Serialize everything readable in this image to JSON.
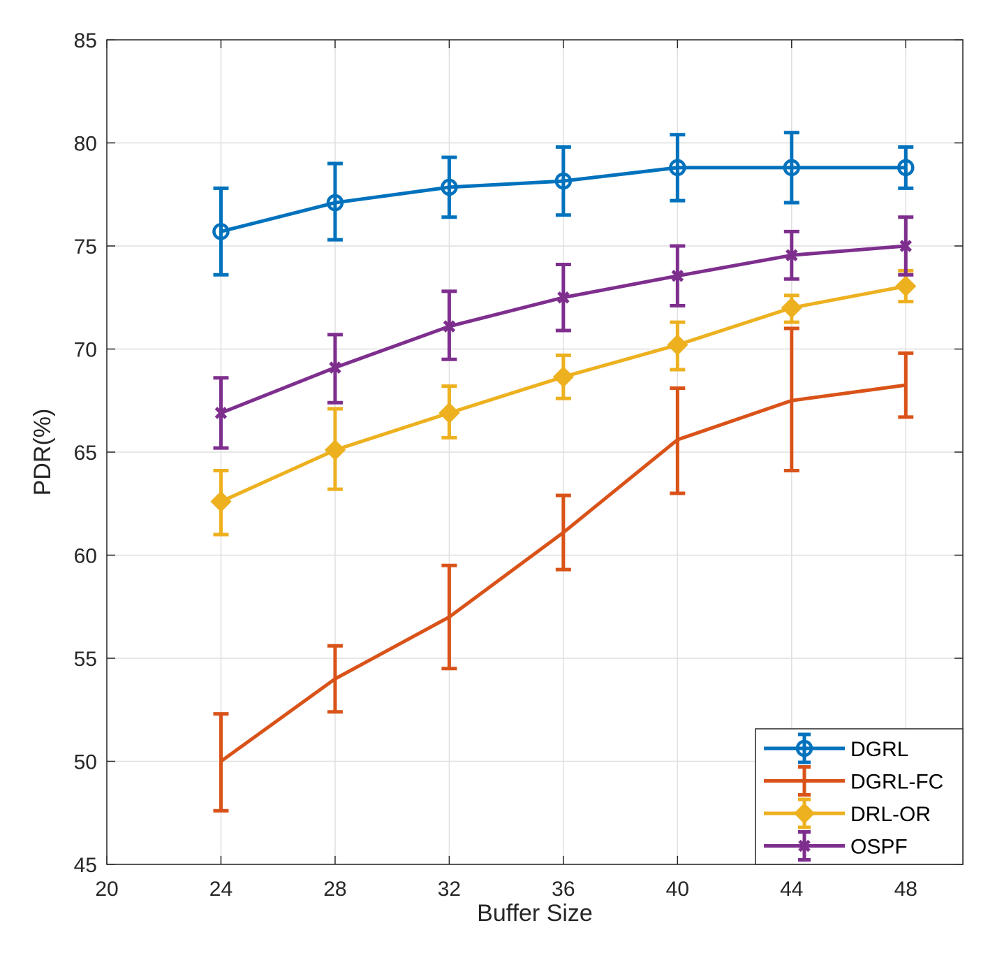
{
  "chart_data": {
    "type": "line",
    "title": "",
    "xlabel": "Buffer Size",
    "ylabel": "PDR(%)",
    "xlim": [
      20,
      50
    ],
    "ylim": [
      45,
      85
    ],
    "xticks": [
      20,
      24,
      28,
      32,
      36,
      40,
      44,
      48
    ],
    "yticks": [
      45,
      50,
      55,
      60,
      65,
      70,
      75,
      80,
      85
    ],
    "grid": true,
    "legend_position": "bottom-right",
    "x": [
      24,
      28,
      32,
      36,
      40,
      44,
      48
    ],
    "series": [
      {
        "name": "DGRL",
        "color": "#0072BD",
        "marker": "circle",
        "values": [
          75.7,
          77.1,
          77.85,
          78.15,
          78.8,
          78.8,
          78.8
        ],
        "err_low": [
          73.6,
          75.3,
          76.4,
          76.5,
          77.2,
          77.1,
          77.8
        ],
        "err_high": [
          77.8,
          79.0,
          79.3,
          79.8,
          80.4,
          80.5,
          79.8
        ]
      },
      {
        "name": "DGRL-FC",
        "color": "#D95319",
        "marker": "none",
        "values": [
          50.0,
          54.0,
          57.0,
          61.1,
          65.6,
          67.5,
          68.25
        ],
        "err_low": [
          47.6,
          52.4,
          54.5,
          59.3,
          63.0,
          64.1,
          66.7
        ],
        "err_high": [
          52.3,
          55.6,
          59.5,
          62.9,
          68.1,
          71.0,
          69.8
        ]
      },
      {
        "name": "DRL-OR",
        "color": "#EDB120",
        "marker": "diamond",
        "values": [
          62.6,
          65.1,
          66.9,
          68.65,
          70.2,
          72.0,
          73.05
        ],
        "err_low": [
          61.0,
          63.2,
          65.7,
          67.6,
          69.0,
          71.3,
          72.3
        ],
        "err_high": [
          64.1,
          67.1,
          68.2,
          69.7,
          71.3,
          72.6,
          73.8
        ]
      },
      {
        "name": "OSPF",
        "color": "#7E2F8E",
        "marker": "x",
        "values": [
          66.9,
          69.1,
          71.1,
          72.5,
          73.55,
          74.55,
          75.0
        ],
        "err_low": [
          65.2,
          67.4,
          69.5,
          70.9,
          72.1,
          73.4,
          73.6
        ],
        "err_high": [
          68.6,
          70.7,
          72.8,
          74.1,
          75.0,
          75.7,
          76.4
        ]
      }
    ]
  }
}
